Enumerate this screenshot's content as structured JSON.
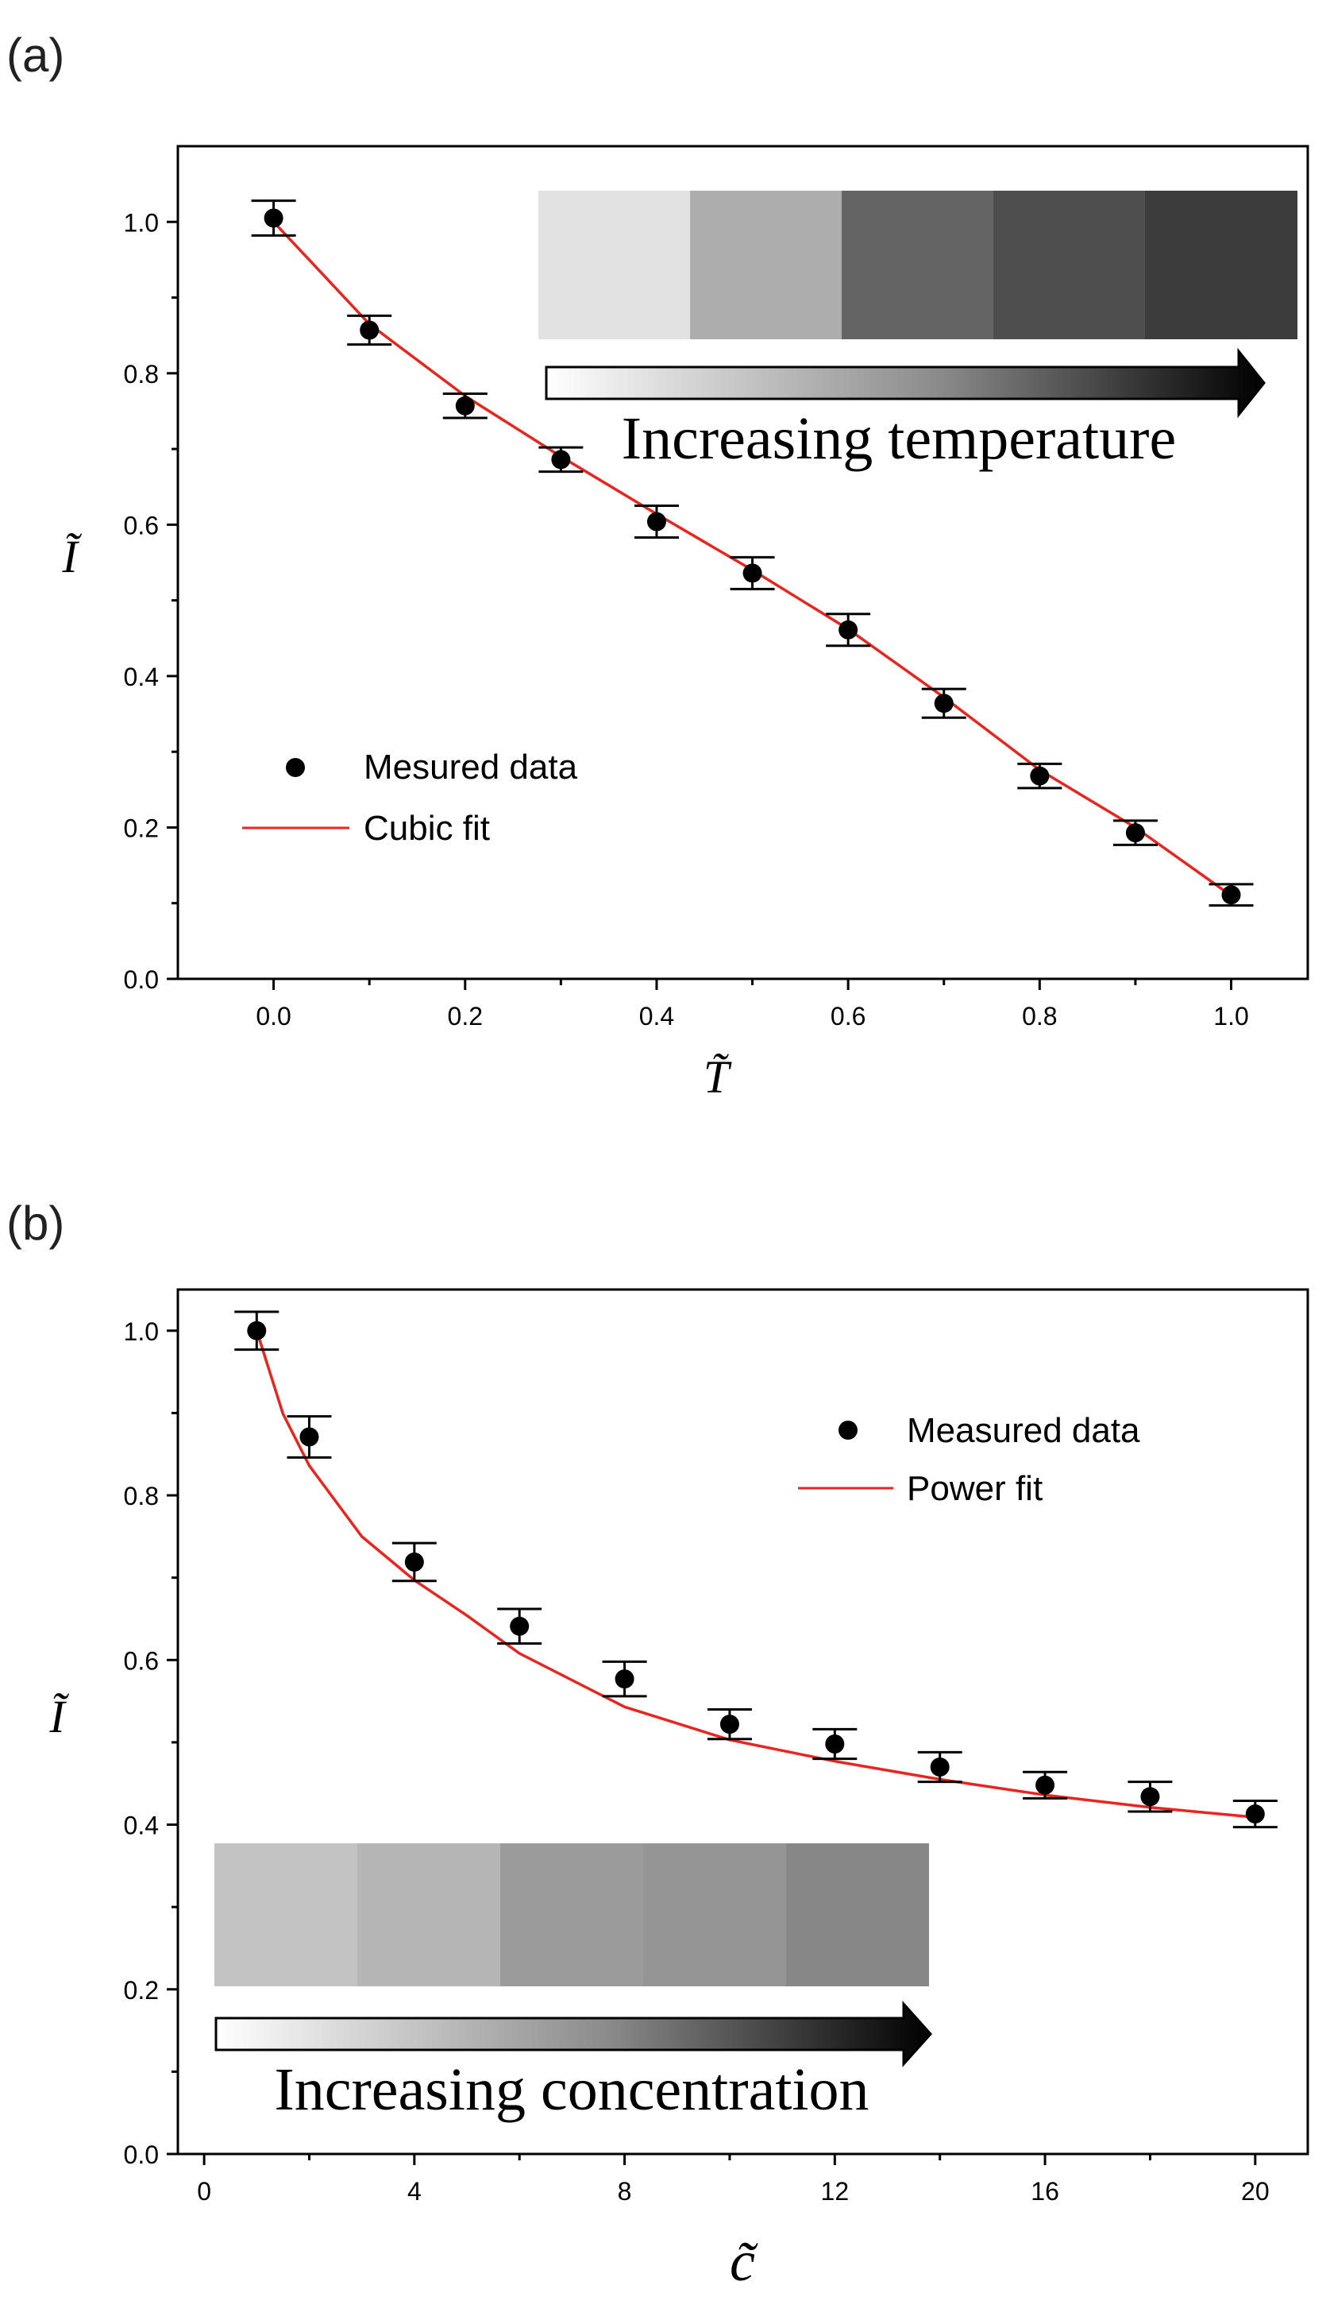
{
  "chart_data": [
    {
      "panel_label": "(a)",
      "type": "scatter",
      "xlabel": "T̃",
      "ylabel": "Ĩ",
      "xlim": [
        -0.1,
        1.08
      ],
      "ylim": [
        0.0,
        1.1
      ],
      "xticks": [
        0.0,
        0.2,
        0.4,
        0.6,
        0.8,
        1.0
      ],
      "xtick_labels": [
        "0.0",
        "0.2",
        "0.4",
        "0.6",
        "0.8",
        "1.0"
      ],
      "yticks": [
        0.0,
        0.2,
        0.4,
        0.6,
        0.8,
        1.0
      ],
      "ytick_labels": [
        "0.0",
        "0.2",
        "0.4",
        "0.6",
        "0.8",
        "1.0"
      ],
      "legend_position": "center-left",
      "series": [
        {
          "name": "Mesured data",
          "marker": "circle",
          "color": "#000000",
          "x": [
            0.0,
            0.1,
            0.2,
            0.3,
            0.4,
            0.5,
            0.6,
            0.7,
            0.8,
            0.9,
            1.0
          ],
          "y": [
            1.005,
            0.857,
            0.757,
            0.686,
            0.604,
            0.536,
            0.461,
            0.364,
            0.268,
            0.193,
            0.111
          ],
          "error": [
            0.023,
            0.019,
            0.016,
            0.016,
            0.021,
            0.021,
            0.021,
            0.019,
            0.016,
            0.016,
            0.014
          ]
        },
        {
          "name": "Cubic fit",
          "type": "line",
          "color": "#e8251f",
          "x": [
            0.0,
            0.1,
            0.2,
            0.3,
            0.4,
            0.5,
            0.6,
            0.7,
            0.8,
            0.9,
            1.0
          ],
          "y": [
            1.0,
            0.865,
            0.77,
            0.69,
            0.614,
            0.54,
            0.462,
            0.372,
            0.276,
            0.2,
            0.11
          ]
        }
      ],
      "inset": {
        "swatches": [
          "#e2e2e2",
          "#adadad",
          "#646464",
          "#4e4e4e",
          "#3c3c3c"
        ],
        "arrow_label": "Increasing temperature"
      }
    },
    {
      "panel_label": "(b)",
      "type": "scatter",
      "xlabel": "c̃",
      "ylabel": "Ĩ",
      "xlim": [
        -0.5,
        21.0
      ],
      "ylim": [
        0.0,
        1.05
      ],
      "xticks": [
        0,
        4,
        8,
        12,
        16,
        20
      ],
      "xtick_labels": [
        "0",
        "4",
        "8",
        "12",
        "16",
        "20"
      ],
      "yticks": [
        0.0,
        0.2,
        0.4,
        0.6,
        0.8,
        1.0
      ],
      "ytick_labels": [
        "0.0",
        "0.2",
        "0.4",
        "0.6",
        "0.8",
        "1.0"
      ],
      "legend_position": "top-right",
      "series": [
        {
          "name": "Measured data",
          "marker": "circle",
          "color": "#000000",
          "x": [
            1,
            2,
            4,
            6,
            8,
            10,
            12,
            14,
            16,
            18,
            20
          ],
          "y": [
            1.0,
            0.871,
            0.719,
            0.641,
            0.577,
            0.522,
            0.498,
            0.47,
            0.448,
            0.434,
            0.413
          ],
          "error": [
            0.023,
            0.025,
            0.023,
            0.021,
            0.021,
            0.018,
            0.018,
            0.018,
            0.016,
            0.018,
            0.016
          ]
        },
        {
          "name": "Power fit",
          "type": "line",
          "color": "#e8251f",
          "x": [
            1,
            1.5,
            2,
            3,
            4,
            5,
            6,
            8,
            10,
            12,
            14,
            16,
            18,
            20
          ],
          "y": [
            1.0,
            0.899,
            0.836,
            0.75,
            0.697,
            0.654,
            0.608,
            0.543,
            0.503,
            0.477,
            0.455,
            0.436,
            0.421,
            0.409
          ]
        }
      ],
      "inset": {
        "swatches": [
          "#c3c3c3",
          "#b5b5b5",
          "#9b9b9b",
          "#959595",
          "#878787"
        ],
        "arrow_label": "Increasing concentration"
      }
    }
  ]
}
